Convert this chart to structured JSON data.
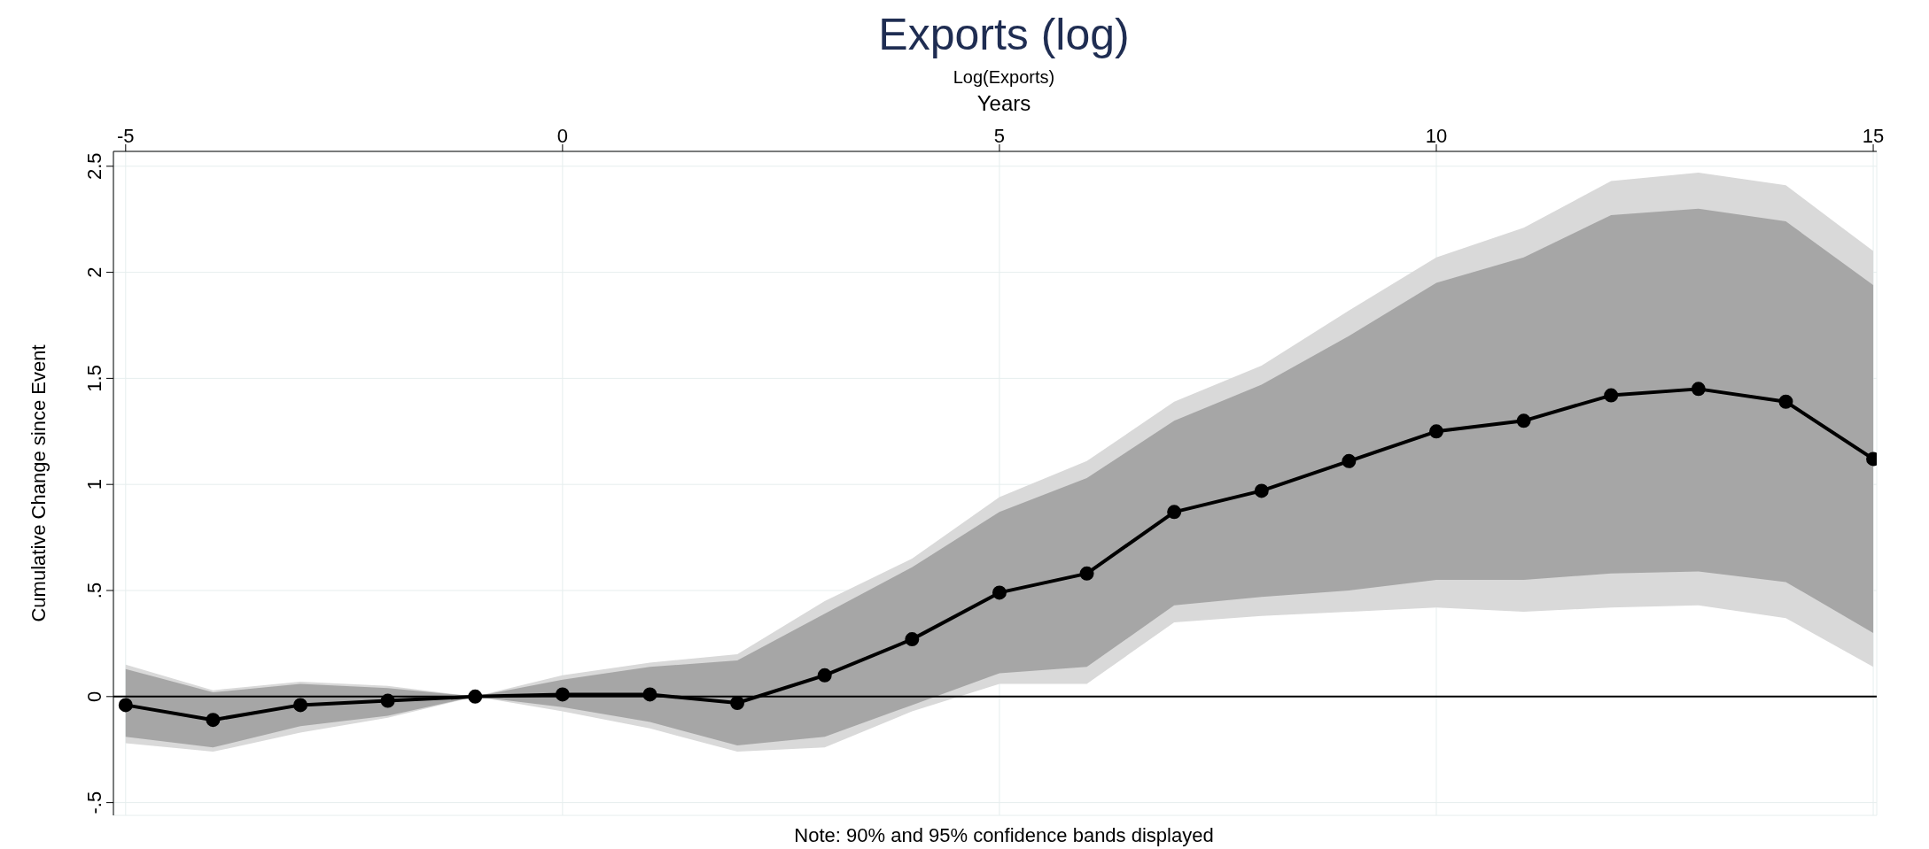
{
  "chart_data": {
    "type": "line",
    "title": "Exports (log)",
    "subtitle": "Log(Exports)",
    "xlabel": "Years",
    "ylabel": "Cumulative Change since Event",
    "x": [
      -5,
      -4,
      -3,
      -2,
      -1,
      0,
      1,
      2,
      3,
      4,
      5,
      6,
      7,
      8,
      9,
      10,
      11,
      12,
      13,
      14,
      15
    ],
    "series": [
      {
        "type": "area",
        "color": "#d9d9d9",
        "values": [
          null,
          null,
          null,
          null,
          null,
          null,
          null,
          null,
          null,
          null,
          null,
          null,
          null,
          null,
          null,
          null,
          null,
          null,
          null,
          null,
          null
        ],
        "lower": [
          -0.22,
          -0.26,
          -0.17,
          -0.1,
          0,
          -0.07,
          -0.15,
          -0.26,
          -0.24,
          -0.07,
          0.06,
          0.06,
          0.35,
          0.38,
          0.4,
          0.42,
          0.4,
          0.42,
          0.43,
          0.37,
          0.14
        ],
        "upper": [
          0.15,
          0.03,
          0.07,
          0.05,
          0,
          0.1,
          0.16,
          0.2,
          0.45,
          0.65,
          0.94,
          1.11,
          1.39,
          1.56,
          1.82,
          2.07,
          2.21,
          2.43,
          2.47,
          2.41,
          2.1
        ]
      },
      {
        "type": "area",
        "color": "#a6a6a6",
        "values": [
          null,
          null,
          null,
          null,
          null,
          null,
          null,
          null,
          null,
          null,
          null,
          null,
          null,
          null,
          null,
          null,
          null,
          null,
          null,
          null,
          null
        ],
        "lower": [
          -0.19,
          -0.24,
          -0.14,
          -0.09,
          0,
          -0.05,
          -0.12,
          -0.23,
          -0.19,
          -0.04,
          0.11,
          0.14,
          0.43,
          0.47,
          0.5,
          0.55,
          0.55,
          0.58,
          0.59,
          0.54,
          0.3
        ],
        "upper": [
          0.13,
          0.02,
          0.06,
          0.04,
          0,
          0.08,
          0.14,
          0.17,
          0.39,
          0.61,
          0.87,
          1.03,
          1.3,
          1.47,
          1.7,
          1.95,
          2.07,
          2.27,
          2.3,
          2.24,
          1.94
        ]
      },
      {
        "color": "#000000",
        "values": [
          -0.04,
          -0.11,
          -0.04,
          -0.02,
          0,
          0.01,
          0.01,
          -0.03,
          0.1,
          0.27,
          0.49,
          0.58,
          0.87,
          0.97,
          1.11,
          1.25,
          1.3,
          1.42,
          1.45,
          1.39,
          1.12
        ]
      }
    ],
    "xlim": [
      -5.14,
      15.04
    ],
    "xticks": [
      -5,
      0,
      5,
      10,
      15
    ],
    "ylim": [
      -0.56,
      2.57
    ],
    "yticks": [
      {
        "value": -0.5,
        "label": "-.5"
      },
      0,
      {
        "value": 0.5,
        "label": ".5"
      },
      1,
      1.5,
      2,
      2.5
    ],
    "ref_lines": [
      {
        "axis": "y",
        "value": 0,
        "color": "#000000"
      }
    ],
    "annotations": [
      "Note: 90% and 95% confidence bands displayed"
    ],
    "grid": true,
    "legend": false,
    "marker": "circle",
    "line_style": "solid"
  }
}
